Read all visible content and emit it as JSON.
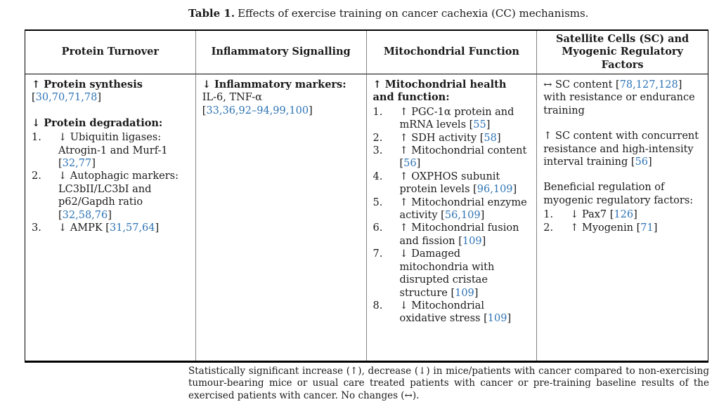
{
  "caption": {
    "label": "Table 1.",
    "text": "Effects of exercise training on cancer cachexia (CC) mechanisms."
  },
  "colors": {
    "citation_blue": "#2e74b5",
    "body_text": "#1a1a1a",
    "grid_line_gray": "#848484",
    "rule_black": "#000000"
  },
  "table": {
    "headers": [
      "Protein Turnover",
      "Inflammatory Signalling",
      "Mitochondrial Function",
      "Satellite Cells (SC) and Myogenic Regulatory Factors"
    ],
    "columns": [
      {
        "name": "protein-turnover",
        "blocks": [
          {
            "type": "para",
            "bold": true,
            "text": "↑ Protein synthesis"
          },
          {
            "type": "para",
            "text": "[30,70,71,78]"
          },
          {
            "type": "spacer"
          },
          {
            "type": "para",
            "bold": true,
            "text": "↓ Protein degradation:"
          },
          {
            "type": "list",
            "items": [
              "↓ Ubiquitin ligases: Atrogin-1 and Murf-1 [32,77]",
              "↓ Autophagic markers: LC3bII/LC3bI and p62/Gapdh ratio [32,58,76]",
              "↓ AMPK [31,57,64]"
            ]
          }
        ]
      },
      {
        "name": "inflammatory-signalling",
        "blocks": [
          {
            "type": "para",
            "bold": true,
            "text": "↓ Inflammatory markers:"
          },
          {
            "type": "para",
            "text": "IL-6, TNF-α"
          },
          {
            "type": "para",
            "text": "[33,36,92–94,99,100]"
          }
        ]
      },
      {
        "name": "mitochondrial-function",
        "blocks": [
          {
            "type": "para",
            "bold": true,
            "text": "↑ Mitochondrial health and function:"
          },
          {
            "type": "list",
            "items": [
              "↑ PGC-1α protein and mRNA levels [55]",
              "↑ SDH activity [58]",
              "↑ Mitochondrial content [56]",
              "↑ OXPHOS subunit protein levels [96,109]",
              "↑ Mitochondrial enzyme activity [56,109]",
              "↑ Mitochondrial fusion and fission [109]",
              "↓ Damaged mitochondria with disrupted cristae structure [109]",
              "↓ Mitochondrial oxidative stress [109]"
            ]
          }
        ]
      },
      {
        "name": "satellite-cells",
        "blocks": [
          {
            "type": "para",
            "text": "↔ SC content [78,127,128] with resistance or endurance training"
          },
          {
            "type": "spacer"
          },
          {
            "type": "para",
            "text": "↑ SC content with concurrent resistance and high-intensity interval training [56]"
          },
          {
            "type": "spacer"
          },
          {
            "type": "para",
            "text": "Beneficial regulation of myogenic regulatory factors:"
          },
          {
            "type": "list",
            "items": [
              "↓ Pax7 [126]",
              "↑ Myogenin [71]"
            ]
          }
        ]
      }
    ]
  },
  "footnote": "Statistically significant increase (↑), decrease (↓) in mice/patients with cancer compared to non-exercising tumour-bearing mice or usual care treated patients with cancer or pre-training baseline results of the exercised patients with cancer. No changes (↔)."
}
